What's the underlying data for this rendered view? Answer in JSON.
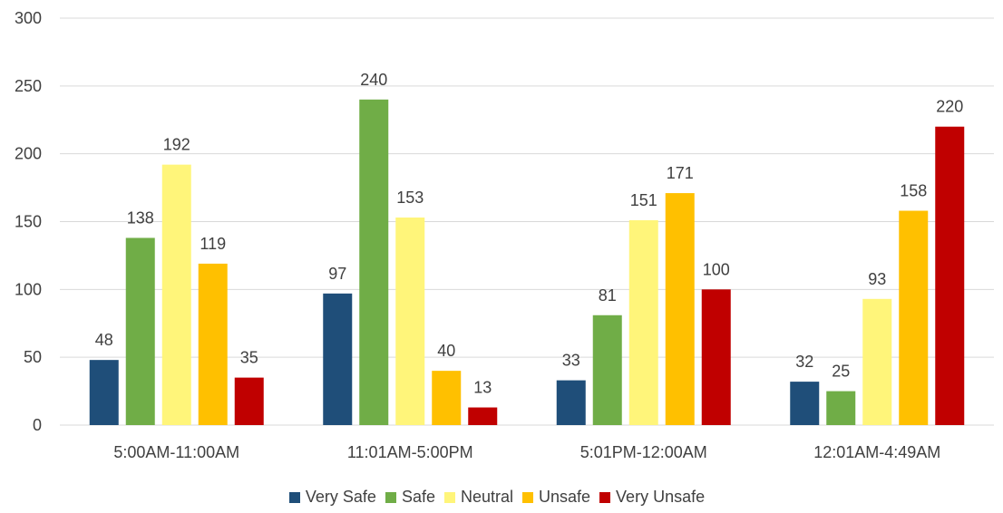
{
  "chart_data": {
    "type": "bar",
    "categories": [
      "5:00AM-11:00AM",
      "11:01AM-5:00PM",
      "5:01PM-12:00AM",
      "12:01AM-4:49AM"
    ],
    "series": [
      {
        "name": "Very Safe",
        "color": "#1F4E79",
        "values": [
          48,
          97,
          33,
          32
        ]
      },
      {
        "name": "Safe",
        "color": "#70AD47",
        "values": [
          138,
          240,
          81,
          25
        ]
      },
      {
        "name": "Neutral",
        "color": "#FFF57A",
        "values": [
          192,
          153,
          151,
          93
        ]
      },
      {
        "name": "Unsafe",
        "color": "#FFC000",
        "values": [
          119,
          40,
          171,
          158
        ]
      },
      {
        "name": "Very Unsafe",
        "color": "#C00000",
        "values": [
          35,
          13,
          100,
          220
        ]
      }
    ],
    "yticks": [
      "0",
      "50",
      "100",
      "150",
      "200",
      "250",
      "300"
    ],
    "ylim": [
      0,
      300
    ],
    "grid": true,
    "legend_position": "bottom",
    "data_labels": true
  }
}
